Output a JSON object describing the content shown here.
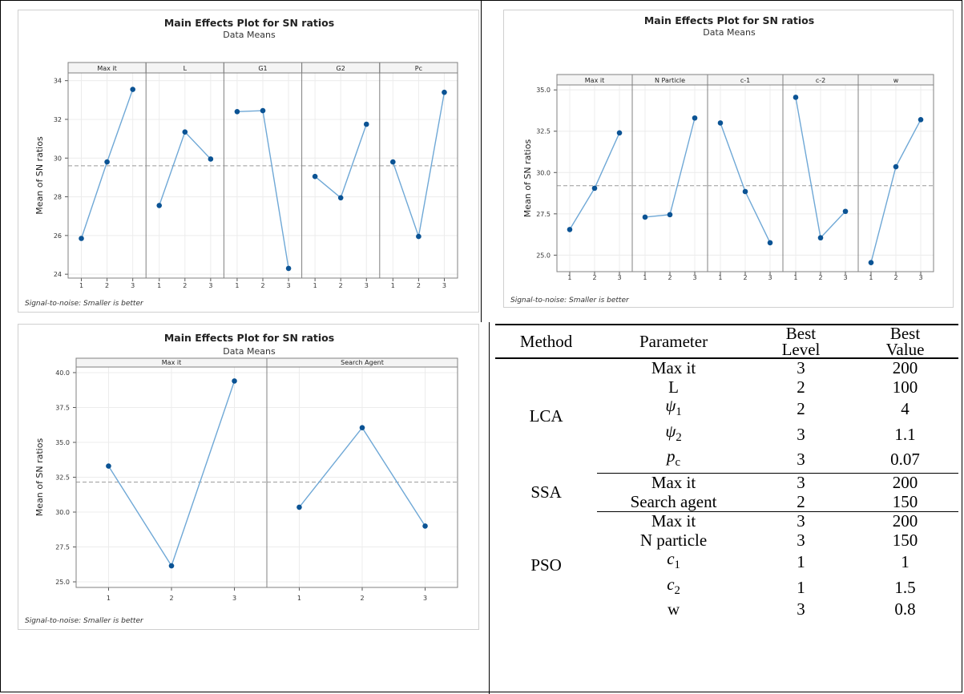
{
  "chart_data": [
    {
      "type": "line",
      "title": "Main Effects Plot for SN ratios",
      "subtitle": "Data Means",
      "ylabel": "Mean of SN ratios",
      "footnote": "Signal-to-noise: Smaller is better",
      "ylim": [
        23.8,
        34.4
      ],
      "yticks": [
        24,
        26,
        28,
        30,
        32,
        34
      ],
      "ytick_labels": [
        "24",
        "26",
        "28",
        "30",
        "32",
        "34"
      ],
      "levels": [
        "1",
        "2",
        "3"
      ],
      "mean_line": 29.6,
      "facets": [
        {
          "name": "Max it",
          "values": [
            25.85,
            29.8,
            33.55
          ]
        },
        {
          "name": "L",
          "values": [
            27.55,
            31.35,
            29.95
          ]
        },
        {
          "name": "G1",
          "values": [
            32.4,
            32.45,
            24.3
          ]
        },
        {
          "name": "G2",
          "values": [
            29.05,
            27.95,
            31.75
          ]
        },
        {
          "name": "Pc",
          "values": [
            29.8,
            25.95,
            33.4
          ]
        }
      ]
    },
    {
      "type": "line",
      "title": "Main Effects Plot for SN ratios",
      "subtitle": "Data Means",
      "ylabel": "Mean of SN ratios",
      "footnote": "Signal-to-noise: Smaller is better",
      "ylim": [
        24.0,
        35.3
      ],
      "yticks": [
        25.0,
        27.5,
        30.0,
        32.5,
        35.0
      ],
      "ytick_labels": [
        "25.0",
        "27.5",
        "30.0",
        "32.5",
        "35.0"
      ],
      "levels": [
        "1",
        "2",
        "3"
      ],
      "mean_line": 29.2,
      "facets": [
        {
          "name": "Max it",
          "values": [
            26.55,
            29.05,
            32.4
          ]
        },
        {
          "name": "N Particle",
          "values": [
            27.3,
            27.45,
            33.3
          ]
        },
        {
          "name": "c-1",
          "values": [
            33.0,
            28.85,
            25.75
          ]
        },
        {
          "name": "c-2",
          "values": [
            34.55,
            26.05,
            27.65
          ]
        },
        {
          "name": "w",
          "values": [
            24.55,
            30.35,
            33.2
          ]
        }
      ]
    },
    {
      "type": "line",
      "title": "Main Effects Plot for SN ratios",
      "subtitle": "Data Means",
      "ylabel": "Mean of SN ratios",
      "footnote": "Signal-to-noise: Smaller is better",
      "ylim": [
        24.6,
        40.4
      ],
      "yticks": [
        25.0,
        27.5,
        30.0,
        32.5,
        35.0,
        37.5,
        40.0
      ],
      "ytick_labels": [
        "25.0",
        "27.5",
        "30.0",
        "32.5",
        "35.0",
        "37.5",
        "40.0"
      ],
      "levels": [
        "1",
        "2",
        "3"
      ],
      "mean_line": 32.15,
      "facets": [
        {
          "name": "Max it",
          "values": [
            33.3,
            26.15,
            39.4
          ]
        },
        {
          "name": "Search Agent",
          "values": [
            30.35,
            36.05,
            29.0
          ]
        }
      ]
    },
    {
      "type": "table",
      "columns": [
        "Method",
        "Parameter",
        "Best Level",
        "Best Value"
      ],
      "groups": [
        {
          "method": "LCA",
          "rows": [
            {
              "param": "Max it",
              "level": "3",
              "value": "200"
            },
            {
              "param": "L",
              "level": "2",
              "value": "100"
            },
            {
              "param": "ψ1",
              "level": "2",
              "value": "4"
            },
            {
              "param": "ψ2",
              "level": "3",
              "value": "1.1"
            },
            {
              "param": "pc",
              "level": "3",
              "value": "0.07"
            }
          ]
        },
        {
          "method": "SSA",
          "rows": [
            {
              "param": "Max it",
              "level": "3",
              "value": "200"
            },
            {
              "param": "Search agent",
              "level": "2",
              "value": "150"
            }
          ]
        },
        {
          "method": "PSO",
          "rows": [
            {
              "param": "Max it",
              "level": "3",
              "value": "200"
            },
            {
              "param": "N particle",
              "level": "3",
              "value": "150"
            },
            {
              "param": "c1",
              "level": "1",
              "value": "1"
            },
            {
              "param": "c2",
              "level": "1",
              "value": "1.5"
            },
            {
              "param": "w",
              "level": "3",
              "value": "0.8"
            }
          ]
        }
      ]
    }
  ],
  "colors": {
    "line": "#6fa8d6",
    "point": "#0b5394",
    "mean": "#999999",
    "grid": "#ececec",
    "frame": "#808080",
    "facet_bg": "#f4f4f4"
  }
}
